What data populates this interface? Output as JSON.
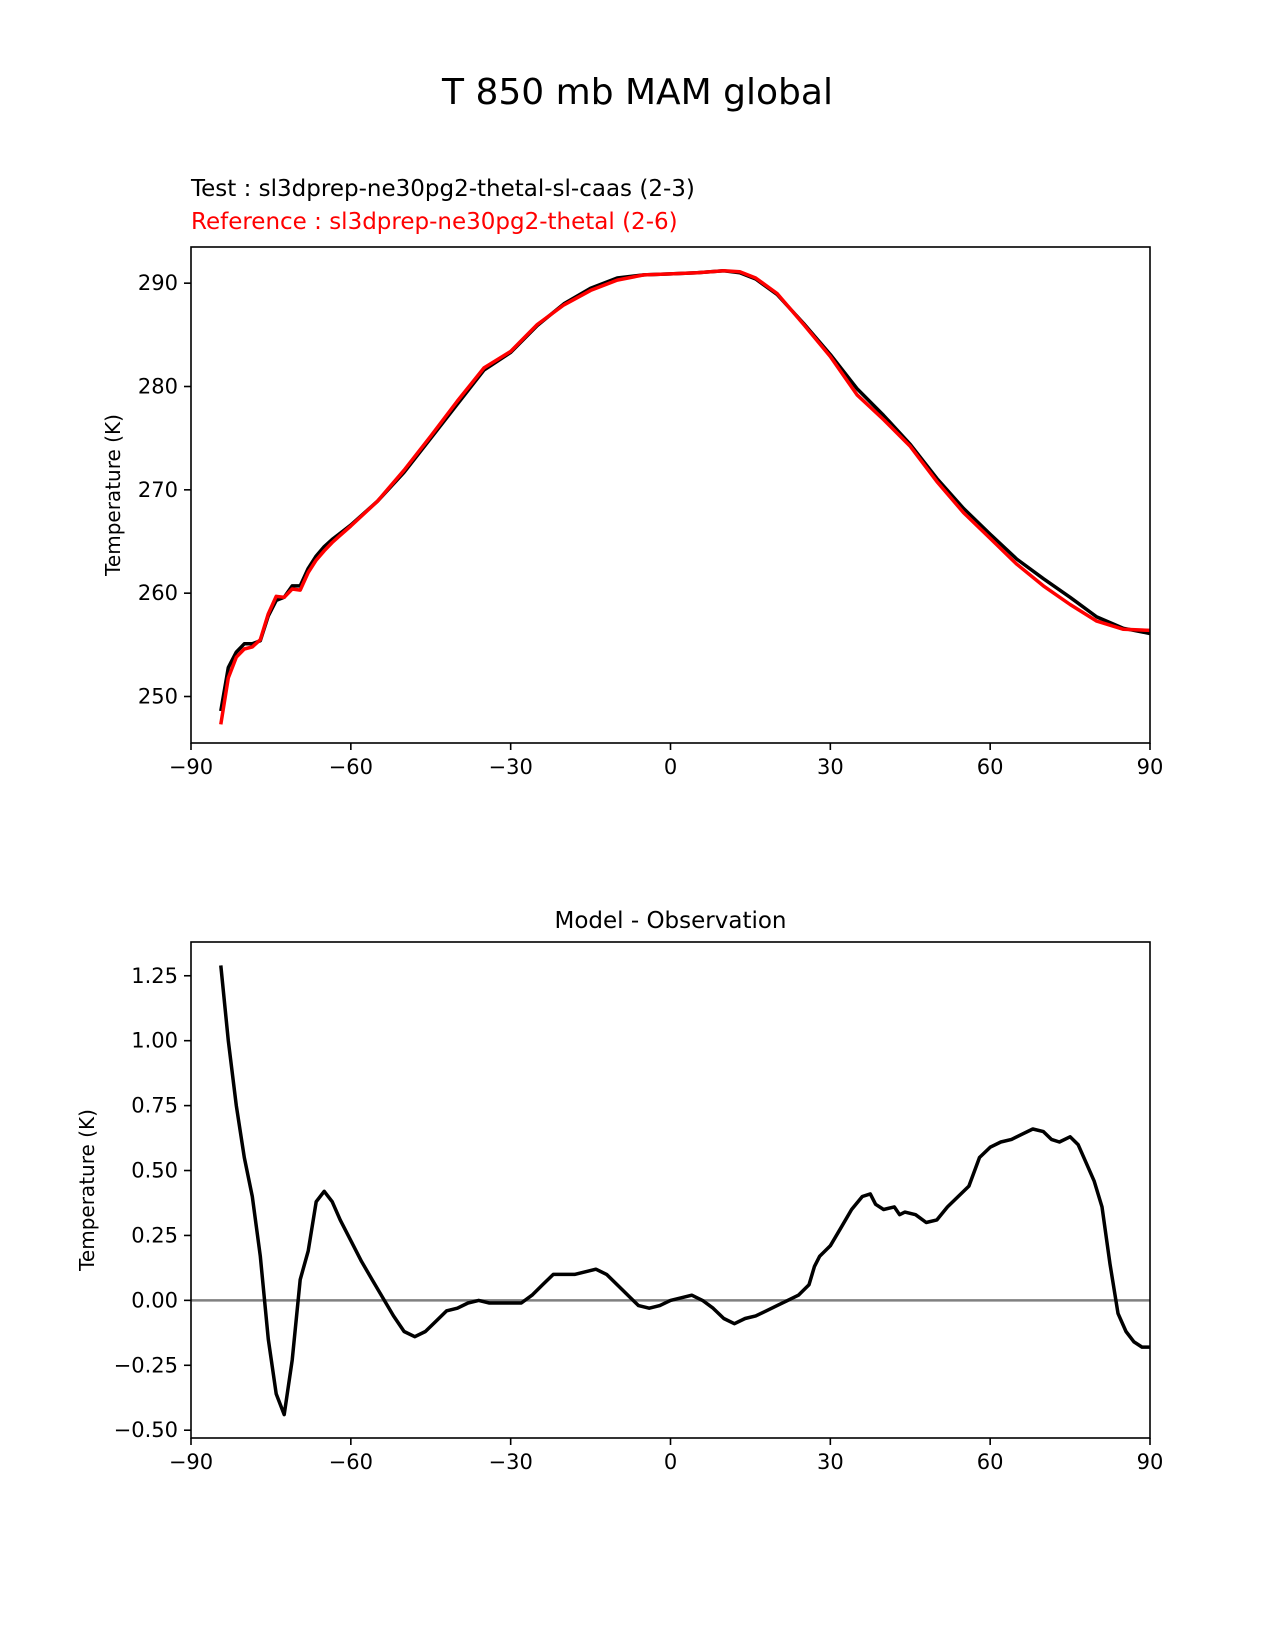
{
  "suptitle": "T 850 mb MAM global",
  "colors": {
    "test": "#000000",
    "reference": "#ff0000",
    "zero_line": "#808080",
    "axes": "#000000"
  },
  "chart_data": [
    {
      "type": "line",
      "title": "",
      "test_label": "Test : sl3dprep-ne30pg2-thetal-sl-caas (2-3)",
      "reference_label": "Reference : sl3dprep-ne30pg2-thetal (2-6)",
      "xlabel": "",
      "ylabel": "Temperature (K)",
      "xlim": [
        -90,
        90
      ],
      "ylim": [
        245.5,
        293.5
      ],
      "xticks": [
        -90,
        -60,
        -30,
        0,
        30,
        60,
        90
      ],
      "xtick_labels": [
        "−90",
        "−60",
        "−30",
        "0",
        "30",
        "60",
        "90"
      ],
      "yticks": [
        250,
        260,
        270,
        280,
        290
      ],
      "ytick_labels": [
        "250",
        "260",
        "270",
        "280",
        "290"
      ],
      "series": [
        {
          "role": "test",
          "color": "#000000",
          "x": [
            -84.4,
            -83,
            -81.5,
            -80,
            -78.5,
            -77,
            -75.5,
            -74,
            -72.5,
            -71,
            -69.5,
            -68,
            -66.5,
            -65,
            -63.5,
            -62,
            -60,
            -55,
            -50,
            -45,
            -40,
            -35,
            -30,
            -25,
            -20,
            -15,
            -10,
            -5,
            0,
            5,
            10,
            13,
            16,
            20,
            25,
            30,
            35,
            40,
            45,
            50,
            55,
            60,
            65,
            70,
            75,
            80,
            85,
            90
          ],
          "y": [
            248.6,
            252.8,
            254.3,
            255.1,
            255.1,
            255.4,
            257.8,
            259.3,
            259.6,
            260.7,
            260.7,
            262.4,
            263.6,
            264.5,
            265.2,
            265.8,
            266.6,
            268.9,
            271.7,
            275.0,
            278.3,
            281.6,
            283.3,
            285.9,
            288.0,
            289.5,
            290.5,
            290.8,
            290.9,
            291.0,
            291.2,
            291.0,
            290.4,
            288.9,
            286.1,
            283.1,
            279.8,
            277.2,
            274.4,
            271.1,
            268.2,
            265.7,
            263.3,
            261.4,
            259.6,
            257.7,
            256.6,
            256.1
          ]
        },
        {
          "role": "reference",
          "color": "#ff0000",
          "x": [
            -84.4,
            -83,
            -81.5,
            -80,
            -78.5,
            -77,
            -75.5,
            -74,
            -72.5,
            -71,
            -69.5,
            -68,
            -66.5,
            -65,
            -63.5,
            -62,
            -60,
            -55,
            -50,
            -45,
            -40,
            -35,
            -30,
            -25,
            -20,
            -15,
            -10,
            -5,
            0,
            5,
            10,
            13,
            16,
            20,
            25,
            30,
            35,
            40,
            45,
            50,
            55,
            60,
            65,
            70,
            75,
            80,
            85,
            90
          ],
          "y": [
            247.3,
            251.8,
            253.8,
            254.6,
            254.8,
            255.5,
            258.0,
            259.7,
            259.6,
            260.4,
            260.3,
            262.0,
            263.2,
            264.1,
            264.9,
            265.6,
            266.5,
            268.9,
            271.9,
            275.2,
            278.6,
            281.8,
            283.4,
            286.0,
            287.9,
            289.3,
            290.3,
            290.8,
            290.9,
            291.0,
            291.2,
            291.1,
            290.5,
            289.0,
            286.0,
            282.9,
            279.2,
            276.8,
            274.2,
            270.8,
            267.8,
            265.3,
            262.8,
            260.7,
            258.9,
            257.3,
            256.5,
            256.4
          ]
        }
      ]
    },
    {
      "type": "line",
      "title": "Model - Observation",
      "xlabel": "",
      "ylabel": "Temperature (K)",
      "xlim": [
        -90,
        90
      ],
      "ylim": [
        -0.53,
        1.38
      ],
      "xticks": [
        -90,
        -60,
        -30,
        0,
        30,
        60,
        90
      ],
      "xtick_labels": [
        "−90",
        "−60",
        "−30",
        "0",
        "30",
        "60",
        "90"
      ],
      "yticks": [
        -0.5,
        -0.25,
        0.0,
        0.25,
        0.5,
        0.75,
        1.0,
        1.25
      ],
      "ytick_labels": [
        "−0.50",
        "−0.25",
        "0.00",
        "0.25",
        "0.50",
        "0.75",
        "1.00",
        "1.25"
      ],
      "reference_line_y": 0,
      "series": [
        {
          "role": "difference",
          "color": "#000000",
          "x": [
            -84.4,
            -83,
            -81.5,
            -80,
            -78.5,
            -77,
            -75.5,
            -74,
            -72.5,
            -71,
            -69.5,
            -68,
            -66.5,
            -65,
            -63.5,
            -62,
            -60,
            -58,
            -56,
            -54,
            -52,
            -50,
            -48,
            -46,
            -44,
            -42,
            -40,
            -38,
            -36,
            -34,
            -32,
            -30,
            -28,
            -26,
            -24,
            -22,
            -20,
            -18,
            -16,
            -14,
            -12,
            -10,
            -8,
            -6,
            -4,
            -2,
            0,
            2,
            4,
            5,
            6,
            8,
            10,
            12,
            14,
            16,
            18,
            20,
            22,
            24,
            26,
            27,
            28,
            30,
            32,
            34,
            36,
            37.5,
            38.5,
            40,
            42,
            43,
            44,
            46,
            48,
            50,
            52,
            54,
            56,
            58,
            60,
            62,
            64,
            66,
            68,
            70,
            71.5,
            73,
            75,
            76.5,
            78,
            79.5,
            81,
            82.5,
            84,
            85.5,
            87,
            88.5,
            90
          ],
          "y": [
            1.29,
            1.0,
            0.75,
            0.55,
            0.4,
            0.17,
            -0.15,
            -0.36,
            -0.44,
            -0.23,
            0.08,
            0.19,
            0.38,
            0.42,
            0.38,
            0.31,
            0.23,
            0.15,
            0.08,
            0.01,
            -0.06,
            -0.12,
            -0.14,
            -0.12,
            -0.08,
            -0.04,
            -0.03,
            -0.01,
            0.0,
            -0.01,
            -0.01,
            -0.01,
            -0.01,
            0.02,
            0.06,
            0.1,
            0.1,
            0.1,
            0.11,
            0.12,
            0.1,
            0.06,
            0.02,
            -0.02,
            -0.03,
            -0.02,
            0.0,
            0.01,
            0.02,
            0.01,
            0.0,
            -0.03,
            -0.07,
            -0.09,
            -0.07,
            -0.06,
            -0.04,
            -0.02,
            0.0,
            0.02,
            0.06,
            0.13,
            0.17,
            0.21,
            0.28,
            0.35,
            0.4,
            0.41,
            0.37,
            0.35,
            0.36,
            0.33,
            0.34,
            0.33,
            0.3,
            0.31,
            0.36,
            0.4,
            0.44,
            0.55,
            0.59,
            0.61,
            0.62,
            0.64,
            0.66,
            0.65,
            0.62,
            0.61,
            0.63,
            0.6,
            0.53,
            0.46,
            0.36,
            0.14,
            -0.05,
            -0.12,
            -0.16,
            -0.18,
            -0.18
          ]
        }
      ]
    }
  ]
}
